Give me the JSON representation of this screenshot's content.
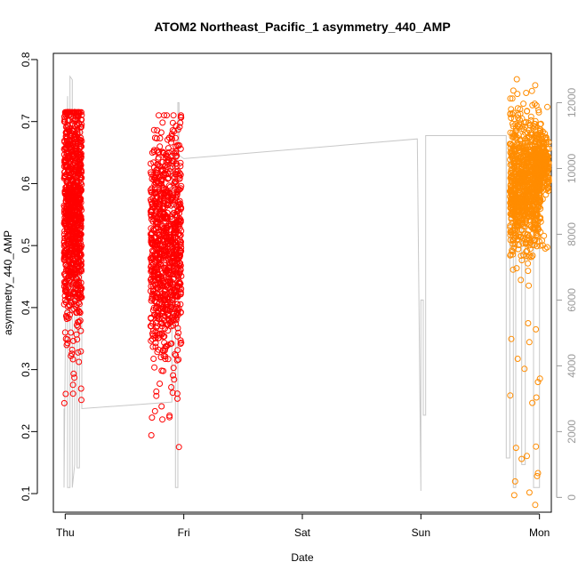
{
  "chart_data": {
    "type": "scatter",
    "title": "ATOM2 Northeast_Pacific_1 asymmetry_440_AMP",
    "xlabel": "Date",
    "ylabel": "asymmetry_440_AMP",
    "x_ticks": [
      "Thu",
      "Fri",
      "Sat",
      "Sun",
      "Mon"
    ],
    "x_range_days": [
      -0.1,
      4.1
    ],
    "ylim": [
      0.07,
      0.81
    ],
    "y_ticks": [
      "0.1",
      "0.2",
      "0.3",
      "0.4",
      "0.5",
      "0.6",
      "0.7",
      "0.8"
    ],
    "y2_lim": [
      -450,
      13500
    ],
    "y2_ticks": [
      "0",
      "2000",
      "4000",
      "6000",
      "8000",
      "10000",
      "12000"
    ],
    "grid": false,
    "colors": {
      "series_thu_fri": "#ff0000",
      "series_sun_mon": "#ff8c00",
      "secondary_line": "#c8c8c8"
    },
    "series": [
      {
        "clusters": [
          {
            "x": [
              -0.01,
              0.14
            ],
            "y_center": 0.56,
            "y_spread": 0.15,
            "y_min": 0.24,
            "y_max": 0.715,
            "n": 900
          },
          {
            "x": [
              0.72,
              0.98
            ],
            "y_center": 0.5,
            "y_spread": 0.15,
            "y_min": 0.16,
            "y_max": 0.71,
            "n": 900
          }
        ]
      },
      {
        "clusters": [
          {
            "x": [
              3.97,
              4.08
            ],
            "y_center": 0.63,
            "y_spread": 0.04,
            "y_min": 0.49,
            "y_max": 0.745,
            "n": 250
          },
          {
            "x": [
              3.75,
              4.01
            ],
            "y_center": 0.6,
            "y_spread": 0.09,
            "y_min": 0.08,
            "y_max": 0.78,
            "n": 900
          }
        ]
      }
    ],
    "secondary_line": {
      "x": [
        -0.01,
        -0.01,
        0.02,
        0.02,
        0.04,
        0.04,
        0.06,
        0.06,
        0.08,
        0.08,
        0.1,
        0.1,
        0.12,
        0.12,
        0.14,
        0.14,
        0.9,
        0.9,
        0.93,
        0.93,
        0.95,
        0.95,
        0.96,
        0.96,
        1.0,
        2.97,
        2.97,
        3.0,
        3.0,
        3.02,
        3.02,
        3.04,
        3.04,
        3.7,
        3.72,
        3.72,
        3.75,
        3.75,
        3.78,
        3.78,
        3.8,
        3.8,
        3.85,
        3.85,
        3.88,
        3.88,
        3.95,
        3.95,
        4.0,
        4.0
      ],
      "y": [
        2700,
        300,
        12200,
        300,
        300,
        12800,
        12700,
        300,
        1000,
        11800,
        11700,
        900,
        900,
        11600,
        11200,
        2700,
        2900,
        10500,
        10400,
        300,
        300,
        12000,
        12000,
        10400,
        10300,
        10900,
        10900,
        200,
        6000,
        6000,
        2500,
        2500,
        11000,
        11000,
        11000,
        1200,
        1200,
        10600,
        10600,
        300,
        300,
        9900,
        9900,
        1000,
        1000,
        10000,
        10000,
        300,
        300,
        10600
      ]
    }
  }
}
